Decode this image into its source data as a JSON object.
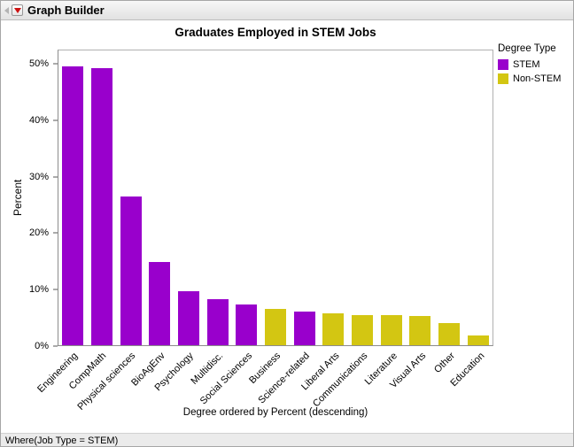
{
  "window": {
    "title": "Graph Builder",
    "status_where": "Where(Job Type = STEM)",
    "icons": {
      "red_triangle_menu": "▼ red disclosure triangle",
      "collapse": "◂ gray collapse triangle"
    }
  },
  "chart_data": {
    "type": "bar",
    "title": "Graduates Employed in STEM Jobs",
    "xlabel": "Degree ordered by Percent (descending)",
    "ylabel": "Percent",
    "ylim": [
      0,
      52.5
    ],
    "yticks": [
      0,
      10,
      20,
      30,
      40,
      50
    ],
    "ytick_labels": [
      "0%",
      "10%",
      "20%",
      "30%",
      "40%",
      "50%"
    ],
    "grid": false,
    "legend_position": "right",
    "legend": {
      "title": "Degree Type",
      "entries": [
        {
          "label": "STEM",
          "color": "#9900cc"
        },
        {
          "label": "Non-STEM",
          "color": "#d3c612"
        }
      ]
    },
    "colors": {
      "STEM": "#9900cc",
      "Non-STEM": "#d3c612"
    },
    "categories": [
      "Engineering",
      "CompMath",
      "Physical sciences",
      "BioAgEnv",
      "Psychology",
      "Multidisc.",
      "Social Sciences",
      "Business",
      "Science-related",
      "Liberal Arts",
      "Communications",
      "Literature",
      "Visual Arts",
      "Other",
      "Education"
    ],
    "series_group": [
      "STEM",
      "STEM",
      "STEM",
      "STEM",
      "STEM",
      "STEM",
      "STEM",
      "Non-STEM",
      "STEM",
      "Non-STEM",
      "Non-STEM",
      "Non-STEM",
      "Non-STEM",
      "Non-STEM",
      "Non-STEM"
    ],
    "values": [
      49.6,
      49.3,
      26.5,
      14.8,
      9.6,
      8.2,
      7.2,
      6.5,
      6.0,
      5.6,
      5.4,
      5.3,
      5.2,
      3.9,
      1.8
    ]
  }
}
